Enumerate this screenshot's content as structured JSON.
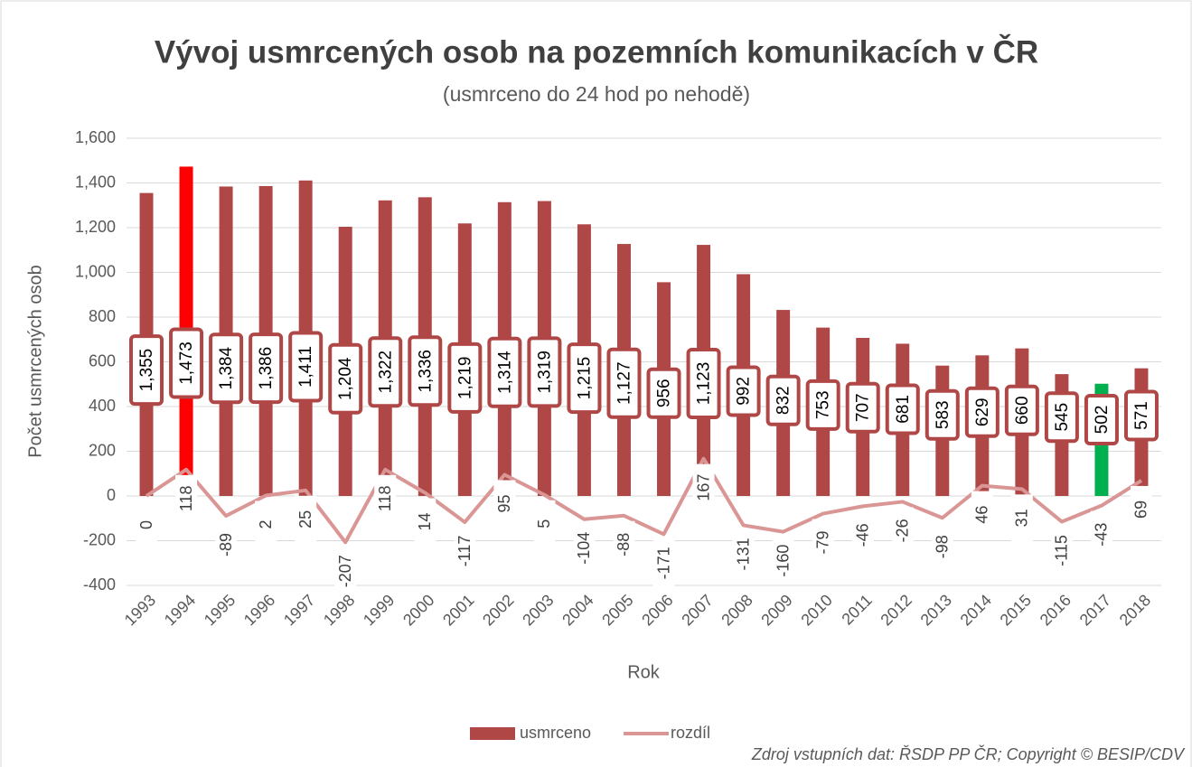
{
  "chart_data": {
    "type": "bar+line",
    "title": "Vývoj usmrcených osob na pozemních komunikacích v ČR",
    "subtitle": "(usmrceno do 24 hod po nehodě)",
    "x_label": "Rok",
    "y_label": "Počet usmrcených osob",
    "source": "Zdroj vstupních dat: ŘSDP PP ČR; Copyright © BESIP/CDV",
    "categories": [
      "1993",
      "1994",
      "1995",
      "1996",
      "1997",
      "1998",
      "1999",
      "2000",
      "2001",
      "2002",
      "2003",
      "2004",
      "2005",
      "2006",
      "2007",
      "2008",
      "2009",
      "2010",
      "2011",
      "2012",
      "2013",
      "2014",
      "2015",
      "2016",
      "2017",
      "2018"
    ],
    "series": [
      {
        "name": "usmrceno",
        "type": "bar",
        "color": "#b04747",
        "point_colors": [
          "#b04747",
          "#ff0000",
          "#b04747",
          "#b04747",
          "#b04747",
          "#b04747",
          "#b04747",
          "#b04747",
          "#b04747",
          "#b04747",
          "#b04747",
          "#b04747",
          "#b04747",
          "#b04747",
          "#b04747",
          "#b04747",
          "#b04747",
          "#b04747",
          "#b04747",
          "#b04747",
          "#b04747",
          "#b04747",
          "#b04747",
          "#b04747",
          "#00b050",
          "#b04747"
        ],
        "values": [
          1355,
          1473,
          1384,
          1386,
          1411,
          1204,
          1322,
          1336,
          1219,
          1314,
          1319,
          1215,
          1127,
          956,
          1123,
          992,
          832,
          753,
          707,
          681,
          583,
          629,
          660,
          545,
          502,
          571
        ],
        "value_labels": [
          "1,355",
          "1,473",
          "1,384",
          "1,386",
          "1,411",
          "1,204",
          "1,322",
          "1,336",
          "1,219",
          "1,314",
          "1,319",
          "1,215",
          "1,127",
          "956",
          "1,123",
          "992",
          "832",
          "753",
          "707",
          "681",
          "583",
          "629",
          "660",
          "545",
          "502",
          "571"
        ]
      },
      {
        "name": "rozdíl",
        "type": "line",
        "color": "#d99694",
        "values": [
          0,
          118,
          -89,
          2,
          25,
          -207,
          118,
          14,
          -117,
          95,
          5,
          -104,
          -88,
          -171,
          167,
          -131,
          -160,
          -79,
          -46,
          -26,
          -98,
          46,
          31,
          -115,
          -43,
          69
        ]
      }
    ],
    "ylim": [
      -400,
      1600
    ],
    "yticks": [
      {
        "value": 1600,
        "label": "1,600"
      },
      {
        "value": 1400,
        "label": "1,400"
      },
      {
        "value": 1200,
        "label": "1,200"
      },
      {
        "value": 1000,
        "label": "1,000"
      },
      800,
      600,
      400,
      200,
      0,
      -200,
      -400
    ],
    "grid": true,
    "legend": "bottom"
  }
}
